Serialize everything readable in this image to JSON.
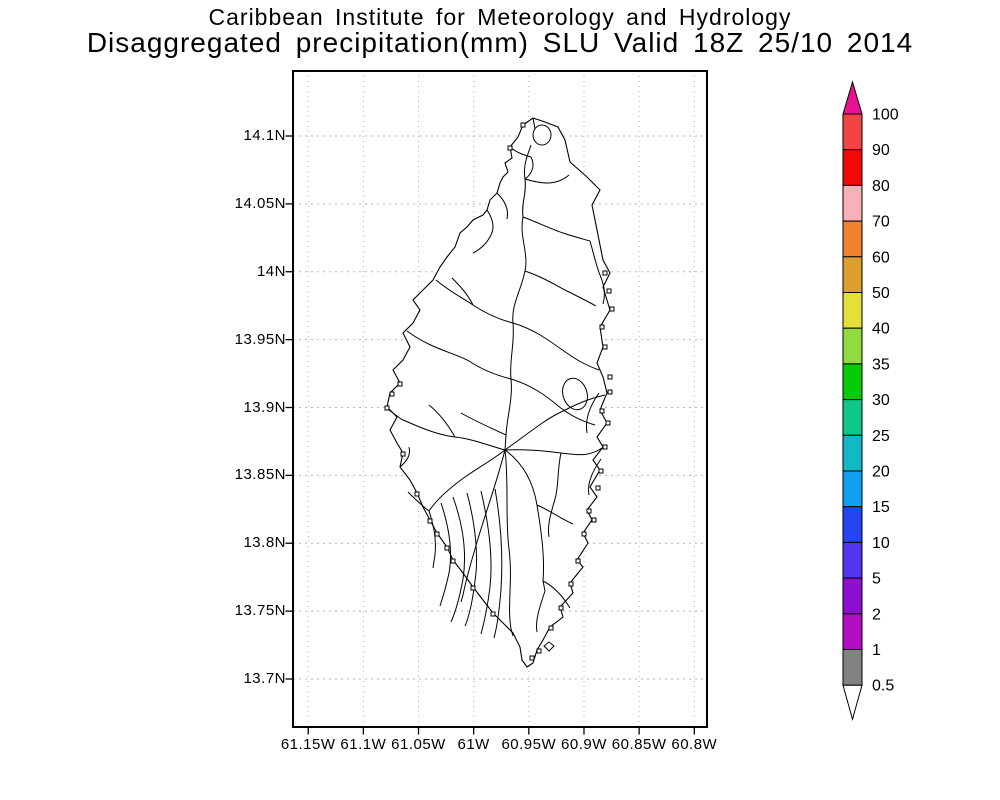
{
  "header": {
    "line1": "Caribbean Institute for Meteorology and Hydrology",
    "line2": "Disaggregated precipitation(mm) SLU Valid 18Z 25/10 2014"
  },
  "map": {
    "island": "Saint Lucia",
    "y_axis_labels": [
      "14.1N",
      "14.05N",
      "14N",
      "13.95N",
      "13.9N",
      "13.85N",
      "13.8N",
      "13.75N",
      "13.7N"
    ],
    "x_axis_labels": [
      "61.15W",
      "61.1W",
      "61.05W",
      "61W",
      "60.95W",
      "60.9W",
      "60.85W",
      "60.8W"
    ]
  },
  "colorbar": {
    "unit": "mm",
    "labels": [
      "100",
      "90",
      "80",
      "70",
      "60",
      "50",
      "40",
      "35",
      "30",
      "25",
      "20",
      "15",
      "10",
      "5",
      "2",
      "1",
      "0.5"
    ],
    "colors_top_to_bottom": [
      "#f24444",
      "#f20a0a",
      "#f9b1b7",
      "#ee8230",
      "#dba02d",
      "#e6e03a",
      "#90dc40",
      "#06ca06",
      "#10c787",
      "#14b7c5",
      "#0ea0f2",
      "#2545f2",
      "#5434f0",
      "#8b10d0",
      "#b40cc2",
      "#828282"
    ],
    "above_max_arrow_color": "#ea1190",
    "below_min_arrow_color": "#ffffff",
    "frame_color": "#000000"
  },
  "style_colors": {
    "grid_line": "#b3b3b3",
    "frame": "#000000",
    "coastline": "#000000",
    "island_fill": "#ffffff"
  }
}
